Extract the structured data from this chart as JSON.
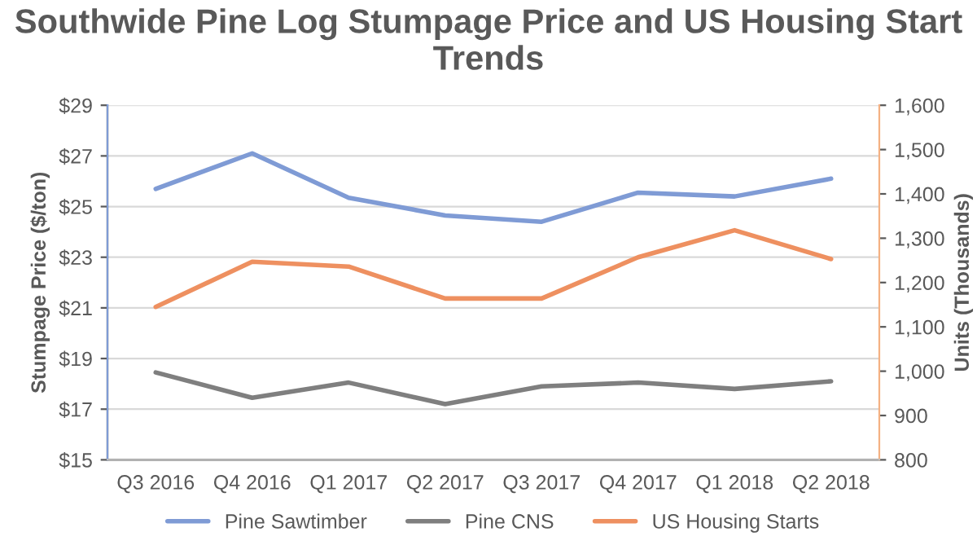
{
  "chart_data": {
    "type": "line",
    "title": "Southwide Pine Log Stumpage Price and US Housing Start Trends",
    "ylabel": "Stumpage Price ($/ton)",
    "y2label": "Units (Thousands)",
    "categories": [
      "Q3 2016",
      "Q4 2016",
      "Q1 2017",
      "Q2 2017",
      "Q3 2017",
      "Q4 2017",
      "Q1 2018",
      "Q2 2018"
    ],
    "series": [
      {
        "name": "Pine Sawtimber",
        "color": "#7f9bd5",
        "values": [
          25.7,
          27.1,
          25.35,
          24.65,
          24.4,
          25.55,
          25.4,
          26.1
        ]
      },
      {
        "name": "Pine CNS",
        "color": "#7f7f7f",
        "values": [
          18.45,
          17.45,
          18.05,
          17.2,
          17.9,
          18.05,
          17.8,
          18.1
        ]
      },
      {
        "name": "US Housing Starts",
        "color": "#ee9060",
        "axis": "y2",
        "values": [
          1145,
          1247,
          1236,
          1164,
          1164,
          1257,
          1318,
          1253
        ]
      }
    ],
    "ylim": [
      15,
      29
    ],
    "yticks": [
      {
        "value": 15,
        "label": "$15"
      },
      {
        "value": 17,
        "label": "$17"
      },
      {
        "value": 19,
        "label": "$19"
      },
      {
        "value": 21,
        "label": "$21"
      },
      {
        "value": 23,
        "label": "$23"
      },
      {
        "value": 25,
        "label": "$25"
      },
      {
        "value": 27,
        "label": "$27"
      },
      {
        "value": 29,
        "label": "$29"
      }
    ],
    "y2lim": [
      800,
      1600
    ],
    "y2ticks": [
      {
        "value": 800,
        "label": "800"
      },
      {
        "value": 900,
        "label": "900"
      },
      {
        "value": 1000,
        "label": "1,000"
      },
      {
        "value": 1100,
        "label": "1,100"
      },
      {
        "value": 1200,
        "label": "1,200"
      },
      {
        "value": 1300,
        "label": "1,300"
      },
      {
        "value": 1400,
        "label": "1,400"
      },
      {
        "value": 1500,
        "label": "1,500"
      },
      {
        "value": 1600,
        "label": "1,600"
      }
    ],
    "grid": "y",
    "legend": "bottom",
    "marker": "none",
    "line_style": "solid"
  }
}
